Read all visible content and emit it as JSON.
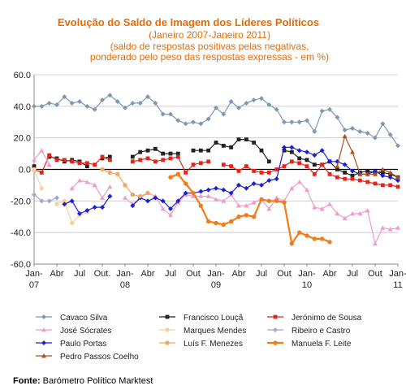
{
  "chart_data": {
    "type": "line",
    "title": "Evolução do Saldo  de Imagem dos Líderes Políticos",
    "subtitle": [
      "(Janeiro 2007-Janeiro 2011)",
      "(saldo de respostas positivas pelas negativas,",
      "ponderado pelo peso das respostas expressas - em %)"
    ],
    "source_label": "Fonte:",
    "source_text": " Barómetro Político Marktest",
    "ylim": [
      -60,
      60
    ],
    "y_ticks": [
      "60.0",
      "40.0",
      "20.0",
      "0.0",
      "-20.0",
      "-40.0",
      "-60.0"
    ],
    "x_month_ticks": [
      {
        "i": 0,
        "lines": [
          "Jan-",
          "07"
        ]
      },
      {
        "i": 3,
        "lines": [
          "Abr"
        ]
      },
      {
        "i": 6,
        "lines": [
          "Jul"
        ]
      },
      {
        "i": 9,
        "lines": [
          "Out."
        ]
      },
      {
        "i": 12,
        "lines": [
          "Jan-",
          "08"
        ]
      },
      {
        "i": 15,
        "lines": [
          "Abr"
        ]
      },
      {
        "i": 18,
        "lines": [
          "Jul"
        ]
      },
      {
        "i": 21,
        "lines": [
          "Out"
        ]
      },
      {
        "i": 24,
        "lines": [
          "Jan-",
          "09"
        ]
      },
      {
        "i": 27,
        "lines": [
          "Abr"
        ]
      },
      {
        "i": 30,
        "lines": [
          "Jul"
        ]
      },
      {
        "i": 33,
        "lines": [
          "Out"
        ]
      },
      {
        "i": 36,
        "lines": [
          "Jan-",
          "10"
        ]
      },
      {
        "i": 39,
        "lines": [
          "Abr"
        ]
      },
      {
        "i": 42,
        "lines": [
          "Jul"
        ]
      },
      {
        "i": 45,
        "lines": [
          "Out"
        ]
      },
      {
        "i": 48,
        "lines": [
          "Jan-",
          "11"
        ]
      }
    ],
    "x_count": 49,
    "series": [
      {
        "name": "Cavaco Silva",
        "color": "#7f98b2",
        "marker": "diamond",
        "start": 0,
        "values": [
          40,
          40,
          42,
          41,
          46,
          42,
          43,
          40,
          38,
          44,
          47,
          43,
          39,
          42,
          42,
          46,
          42,
          35,
          35,
          31,
          29,
          30,
          29,
          32,
          39,
          35,
          43,
          39,
          42,
          44,
          45,
          41,
          38,
          30,
          30,
          30,
          31,
          24,
          37,
          38,
          33,
          25,
          26,
          24,
          23,
          20,
          29,
          22,
          15
        ]
      },
      {
        "name": "Francisco Louçã",
        "color": "#222222",
        "marker": "square",
        "start": 0,
        "values": [
          2,
          null,
          8,
          7,
          5,
          6,
          5,
          2,
          null,
          7,
          8,
          null,
          null,
          8,
          11,
          12,
          13,
          10,
          10,
          10,
          null,
          12,
          12,
          12,
          17,
          15,
          14,
          19,
          19,
          17,
          12,
          5,
          null,
          12,
          11,
          7,
          6,
          3,
          3,
          5,
          0,
          -2,
          -4,
          -2,
          -1,
          -2,
          -2,
          -3,
          -5
        ]
      },
      {
        "name": "Jerónimo de Sousa",
        "color": "#e3261c",
        "marker": "square",
        "start": 0,
        "values": [
          0,
          -2,
          9,
          6,
          6,
          5,
          4,
          4,
          3,
          8,
          6,
          null,
          null,
          5,
          6,
          7,
          5,
          6,
          7,
          8,
          -2,
          3,
          4,
          5,
          null,
          3,
          2,
          -1,
          2,
          -1,
          -2,
          -2,
          0,
          2,
          5,
          4,
          2,
          -3,
          3,
          -3,
          -5,
          -6,
          -6,
          -7,
          -8,
          -9,
          -10,
          -10,
          -11
        ]
      },
      {
        "name": "José Sócrates",
        "color": "#f29bc8",
        "marker": "triangle",
        "start": 0,
        "values": [
          6,
          12,
          3,
          null,
          null,
          -12,
          -7,
          -8,
          -10,
          -18,
          -11,
          null,
          -18,
          -22,
          -18,
          -15,
          -17,
          -25,
          -29,
          -21,
          -16,
          -17,
          -17,
          -17,
          -19,
          -20,
          -16,
          -23,
          -23,
          -21,
          -19,
          -25,
          -18,
          -20,
          -12,
          -8,
          -13,
          -24,
          -25,
          -22,
          -28,
          -31,
          -28,
          -28,
          -26,
          -47,
          -37,
          -38,
          -37
        ]
      },
      {
        "name": "Marques Mendes",
        "color": "#f7d2a4",
        "marker": "circle",
        "start": 0,
        "values": [
          0,
          -12,
          null,
          -22,
          -20,
          -34,
          -29,
          -27
        ]
      },
      {
        "name": "Ribeiro e Castro",
        "color": "#9aa7d8",
        "marker": "diamond",
        "start": 0,
        "values": [
          -16,
          -20,
          -20,
          -18
        ]
      },
      {
        "name": "Paulo Portas",
        "color": "#1f1fd6",
        "marker": "diamond",
        "start": 4,
        "values": [
          -22,
          -20,
          -28,
          -26,
          -24,
          -24,
          -17,
          null,
          null,
          -23,
          -18,
          -20,
          -18,
          -20,
          -25,
          -20,
          -15,
          -15,
          -14,
          -13,
          -12,
          -13,
          -15,
          -10,
          -12,
          -9,
          -10,
          -7,
          -6,
          14,
          14,
          12,
          11,
          9,
          12,
          5,
          5,
          3,
          -1,
          -3,
          -3,
          -1,
          -4,
          -5,
          -7
        ]
      },
      {
        "name": "Luís F. Menezes",
        "color": "#f3a766",
        "marker": "circle",
        "start": 9,
        "values": [
          0,
          -2,
          -3,
          -10,
          -16,
          -17,
          -15
        ]
      },
      {
        "name": "Manuela F. Leite",
        "color": "#f07c1c",
        "marker": "circle",
        "start": 18,
        "values": [
          -5,
          -3,
          -9,
          -15,
          -23,
          -33,
          -34,
          -35,
          -33,
          -30,
          -29,
          -30,
          -19,
          -20,
          -20,
          -21,
          -47,
          -40,
          -42,
          -44,
          -44,
          -46
        ]
      },
      {
        "name": "Pedro Passos Coelho",
        "color": "#a9521c",
        "marker": "triangle",
        "start": 40,
        "values": [
          2,
          21,
          11,
          -3,
          -3,
          -3,
          0,
          -2,
          -5
        ]
      }
    ]
  }
}
